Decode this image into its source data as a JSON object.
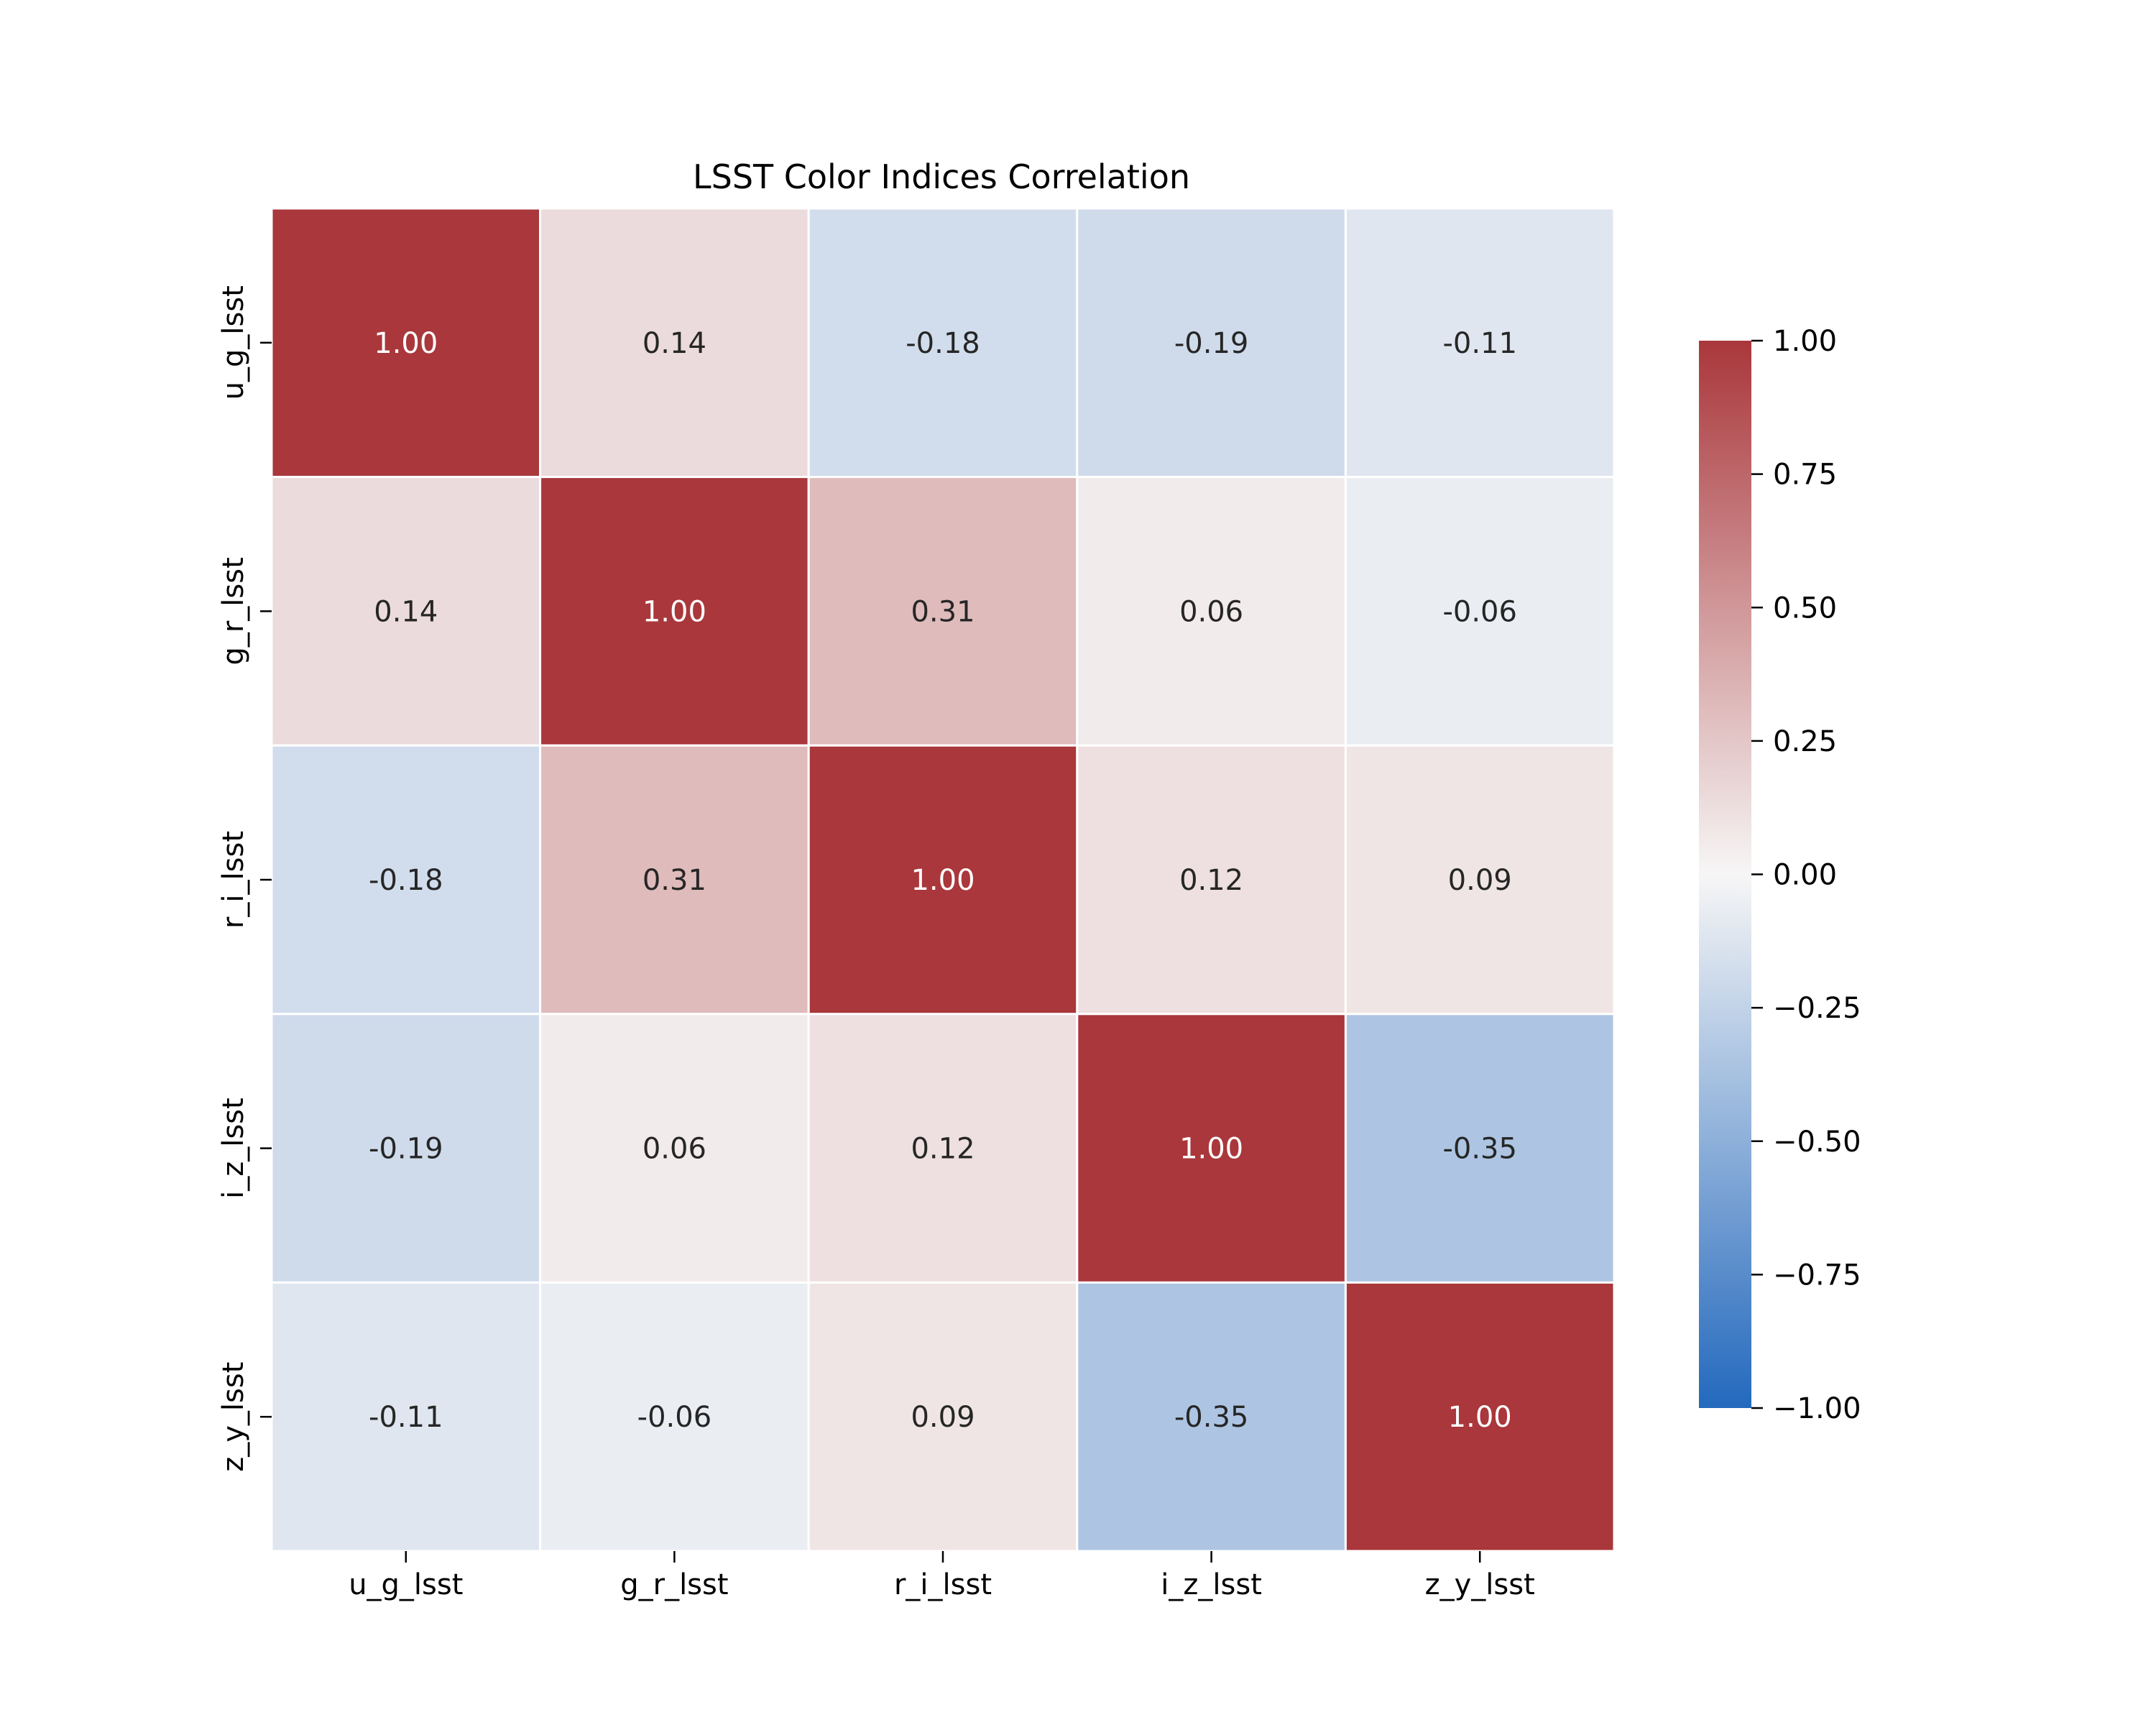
{
  "chart_data": {
    "type": "heatmap",
    "title": "LSST Color Indices Correlation",
    "xlabel": "",
    "ylabel": "",
    "x_categories": [
      "u_g_lsst",
      "g_r_lsst",
      "r_i_lsst",
      "i_z_lsst",
      "z_y_lsst"
    ],
    "y_categories": [
      "u_g_lsst",
      "g_r_lsst",
      "r_i_lsst",
      "i_z_lsst",
      "z_y_lsst"
    ],
    "values": [
      [
        1.0,
        0.14,
        -0.18,
        -0.19,
        -0.11
      ],
      [
        0.14,
        1.0,
        0.31,
        0.06,
        -0.06
      ],
      [
        -0.18,
        0.31,
        1.0,
        0.12,
        0.09
      ],
      [
        -0.19,
        0.06,
        0.12,
        1.0,
        -0.35
      ],
      [
        -0.11,
        -0.06,
        0.09,
        -0.35,
        1.0
      ]
    ],
    "cell_labels": [
      [
        "1.00",
        "0.14",
        "-0.18",
        "-0.19",
        "-0.11"
      ],
      [
        "0.14",
        "1.00",
        "0.31",
        "0.06",
        "-0.06"
      ],
      [
        "-0.18",
        "0.31",
        "1.00",
        "0.12",
        "0.09"
      ],
      [
        "-0.19",
        "0.06",
        "0.12",
        "1.00",
        "-0.35"
      ],
      [
        "-0.11",
        "-0.06",
        "0.09",
        "-0.35",
        "1.00"
      ]
    ],
    "value_range": [
      -1.0,
      1.0
    ],
    "colormap": "vlag",
    "colorbar": {
      "ticks": [
        1.0,
        0.75,
        0.5,
        0.25,
        0.0,
        -0.25,
        -0.5,
        -0.75,
        -1.0
      ],
      "tick_labels": [
        "1.00",
        "0.75",
        "0.50",
        "0.25",
        "0.00",
        "−0.25",
        "−0.50",
        "−0.75",
        "−1.00"
      ],
      "placement": "right"
    },
    "colors": {
      "negative_end": "#2369bd",
      "center": "#f7f6f6",
      "positive_end": "#a9373b",
      "grid_line": "#ffffff",
      "dark_text": "#262626",
      "light_text": "#ffffff"
    },
    "grid": false
  }
}
